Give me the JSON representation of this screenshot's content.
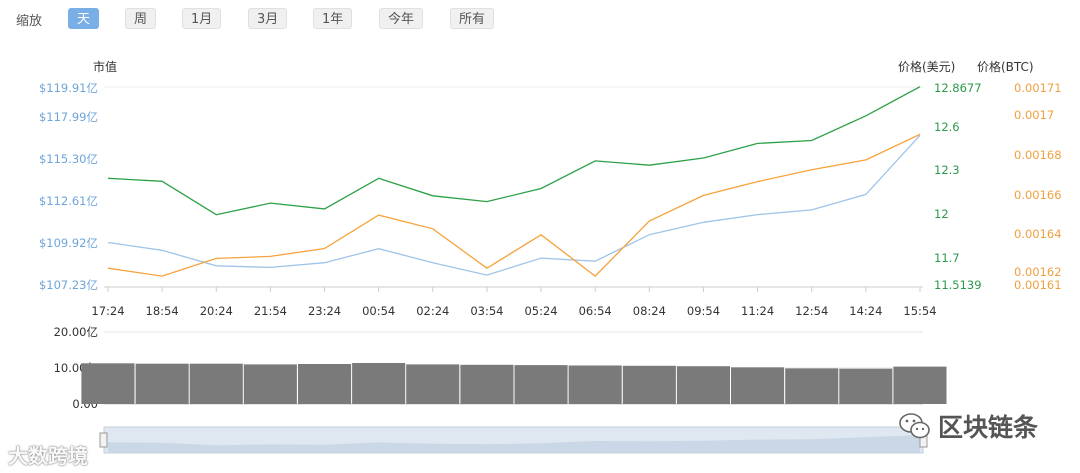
{
  "toolbar": {
    "zoom_label": "缩放",
    "buttons": [
      "天",
      "周",
      "1月",
      "3月",
      "1年",
      "今年",
      "所有"
    ],
    "active_index": 0
  },
  "colors": {
    "market_cap": "#9ec4ea",
    "price_usd": "#2ca146",
    "price_btc": "#f7a23a",
    "volume": "#7a7a7a",
    "navigator_fill": "#c9d7e6",
    "active_button": "#7aaee7"
  },
  "chart_data": [
    {
      "type": "line",
      "x": [
        "17:24",
        "18:54",
        "20:24",
        "21:54",
        "23:24",
        "00:54",
        "02:24",
        "03:54",
        "05:24",
        "06:54",
        "08:24",
        "09:54",
        "11:24",
        "12:54",
        "14:24",
        "15:54"
      ],
      "axes": {
        "market_cap": {
          "title": "市值",
          "ticks": [
            "$119.91亿",
            "$117.99亿",
            "$115.30亿",
            "$112.61亿",
            "$109.92亿",
            "$107.23亿"
          ],
          "range": [
            107.23,
            119.91
          ]
        },
        "price_usd": {
          "title": "价格(美元)",
          "ticks": [
            "12.8677",
            "12.6",
            "12.3",
            "12",
            "11.7",
            "11.5139"
          ],
          "range": [
            11.5139,
            12.8677
          ]
        },
        "price_btc": {
          "title": "价格(BTC)",
          "ticks": [
            "0.00171",
            "0.0017",
            "0.00168",
            "0.00166",
            "0.00164",
            "0.00162",
            "0.00161"
          ],
          "range": [
            0.00161,
            0.00171
          ]
        }
      },
      "series": [
        {
          "key": "price_usd",
          "axis": "price_usd",
          "values": [
            12.24,
            12.22,
            11.99,
            12.07,
            12.03,
            12.24,
            12.12,
            12.08,
            12.17,
            12.36,
            12.33,
            12.38,
            12.48,
            12.5,
            12.67,
            12.87
          ]
        },
        {
          "key": "market_cap",
          "axis": "market_cap",
          "values": [
            109.9,
            109.4,
            108.4,
            108.3,
            108.6,
            109.5,
            108.6,
            107.8,
            108.9,
            108.7,
            110.4,
            111.2,
            111.7,
            112.0,
            113.0,
            116.8
          ]
        },
        {
          "key": "price_btc",
          "axis": "price_btc",
          "values": [
            0.001618,
            0.001614,
            0.001623,
            0.001624,
            0.001628,
            0.001645,
            0.001638,
            0.001618,
            0.001635,
            0.001614,
            0.001642,
            0.001655,
            0.001662,
            0.001668,
            0.001673,
            0.001686
          ]
        }
      ]
    },
    {
      "type": "bar",
      "yticks": [
        "20.00亿",
        "10.00亿",
        "0.00"
      ],
      "ylim": [
        0,
        20
      ],
      "values": [
        11.3,
        11.2,
        11.2,
        11.0,
        11.1,
        11.4,
        11.0,
        10.9,
        10.8,
        10.7,
        10.6,
        10.5,
        10.2,
        9.9,
        9.8,
        10.4
      ]
    }
  ],
  "watermarks": {
    "left": "大数跨境",
    "right": "区块链条"
  }
}
